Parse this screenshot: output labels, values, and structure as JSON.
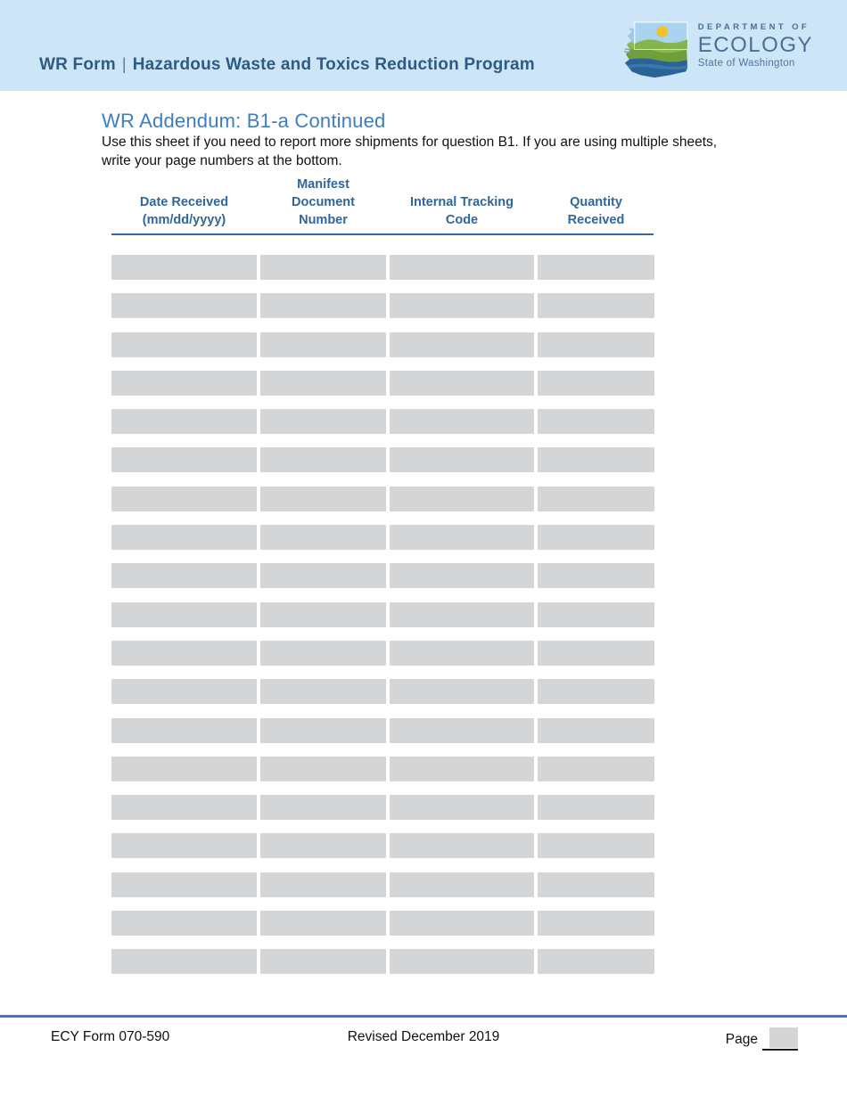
{
  "band": {
    "title_prefix": "WR Form",
    "separator": "|",
    "title_rest": "Hazardous Waste and Toxics Reduction Program"
  },
  "logo": {
    "line1": "DEPARTMENT OF",
    "line2": "ECOLOGY",
    "line3": "State of Washington"
  },
  "page": {
    "title": "WR Addendum: B1-a Continued",
    "instructions_line1": "Use this sheet if you need to report more shipments for question B1. If you are using multiple sheets,",
    "instructions_line2": "write your page numbers at the bottom."
  },
  "table": {
    "row_count": 19,
    "columns": [
      {
        "key": "date-received",
        "lines": [
          "Date Received",
          "(mm/dd/yyyy)"
        ]
      },
      {
        "key": "manifest-document",
        "lines": [
          "Manifest",
          "Document",
          "Number"
        ]
      },
      {
        "key": "internal-tracking",
        "lines": [
          "Internal Tracking",
          "Code"
        ]
      },
      {
        "key": "quantity-received",
        "lines": [
          "Quantity",
          "Received"
        ]
      }
    ],
    "cell_value": ""
  },
  "footer": {
    "form_number": "ECY Form 070-590",
    "revised": "Revised December 2019",
    "page_label": "Page",
    "page_value": ""
  },
  "colors": {
    "band_background": "#cde6f7",
    "band_text": "#2e5b84",
    "page_title_blue": "#3e7ec0",
    "table_header_text": "#31669a",
    "table_header_rule": "#35689a",
    "input_field_gray": "#d4d5d6",
    "footer_rule_blue": "#3c78c8",
    "logo_text_blue": "#4a6e96"
  }
}
